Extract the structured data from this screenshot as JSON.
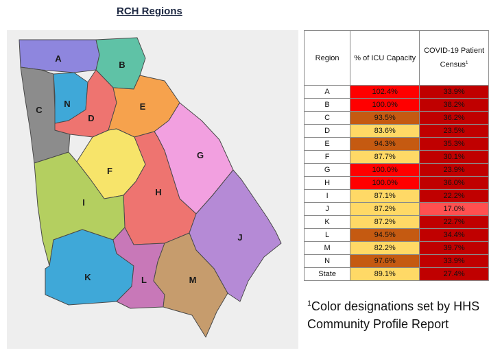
{
  "map_title": "RCH Regions",
  "table": {
    "headers": {
      "region": "Region",
      "icu": "% of ICU Capacity",
      "census": "COVID-19 Patient Census",
      "census_sup": "1"
    },
    "rows": [
      {
        "region": "A",
        "icu": "102.4%",
        "census": "33.9%",
        "icu_color": "#ff0000",
        "census_color": "#c00000"
      },
      {
        "region": "B",
        "icu": "100.0%",
        "census": "38.2%",
        "icu_color": "#ff0000",
        "census_color": "#c00000"
      },
      {
        "region": "C",
        "icu": "93.5%",
        "census": "36.2%",
        "icu_color": "#c55a11",
        "census_color": "#c00000"
      },
      {
        "region": "D",
        "icu": "83.6%",
        "census": "23.5%",
        "icu_color": "#ffd966",
        "census_color": "#c00000"
      },
      {
        "region": "E",
        "icu": "94.3%",
        "census": "35.3%",
        "icu_color": "#c55a11",
        "census_color": "#c00000"
      },
      {
        "region": "F",
        "icu": "87.7%",
        "census": "30.1%",
        "icu_color": "#ffd966",
        "census_color": "#c00000"
      },
      {
        "region": "G",
        "icu": "100.0%",
        "census": "23.9%",
        "icu_color": "#ff0000",
        "census_color": "#c00000"
      },
      {
        "region": "H",
        "icu": "100.0%",
        "census": "36.0%",
        "icu_color": "#ff0000",
        "census_color": "#c00000"
      },
      {
        "region": "I",
        "icu": "87.1%",
        "census": "22.2%",
        "icu_color": "#ffd966",
        "census_color": "#c00000"
      },
      {
        "region": "J",
        "icu": "87.2%",
        "census": "17.0%",
        "icu_color": "#ffd966",
        "census_color": "#ff5050"
      },
      {
        "region": "K",
        "icu": "87.2%",
        "census": "22.7%",
        "icu_color": "#ffd966",
        "census_color": "#c00000"
      },
      {
        "region": "L",
        "icu": "94.5%",
        "census": "34.4%",
        "icu_color": "#c55a11",
        "census_color": "#c00000"
      },
      {
        "region": "M",
        "icu": "82.2%",
        "census": "39.7%",
        "icu_color": "#ffd966",
        "census_color": "#c00000"
      },
      {
        "region": "N",
        "icu": "97.6%",
        "census": "33.9%",
        "icu_color": "#c55a11",
        "census_color": "#c00000"
      },
      {
        "region": "State",
        "icu": "89.1%",
        "census": "27.4%",
        "icu_color": "#ffd966",
        "census_color": "#c00000"
      }
    ]
  },
  "footnote": {
    "sup": "1",
    "text": "Color designations set by HHS Community Profile Report"
  },
  "map_regions": [
    {
      "label": "A",
      "color": "#8e86de"
    },
    {
      "label": "B",
      "color": "#5fc2a6"
    },
    {
      "label": "C",
      "color": "#8c8c8c"
    },
    {
      "label": "N",
      "color": "#3fa8d8"
    },
    {
      "label": "D",
      "color": "#ee7470"
    },
    {
      "label": "E",
      "color": "#f6a24d"
    },
    {
      "label": "G",
      "color": "#f2a0e0"
    },
    {
      "label": "F",
      "color": "#f7e46a"
    },
    {
      "label": "H",
      "color": "#ee7470"
    },
    {
      "label": "I",
      "color": "#b4cf60"
    },
    {
      "label": "J",
      "color": "#b58ad6"
    },
    {
      "label": "K",
      "color": "#3fa8d8"
    },
    {
      "label": "L",
      "color": "#c878b8"
    },
    {
      "label": "M",
      "color": "#c69c6d"
    }
  ]
}
